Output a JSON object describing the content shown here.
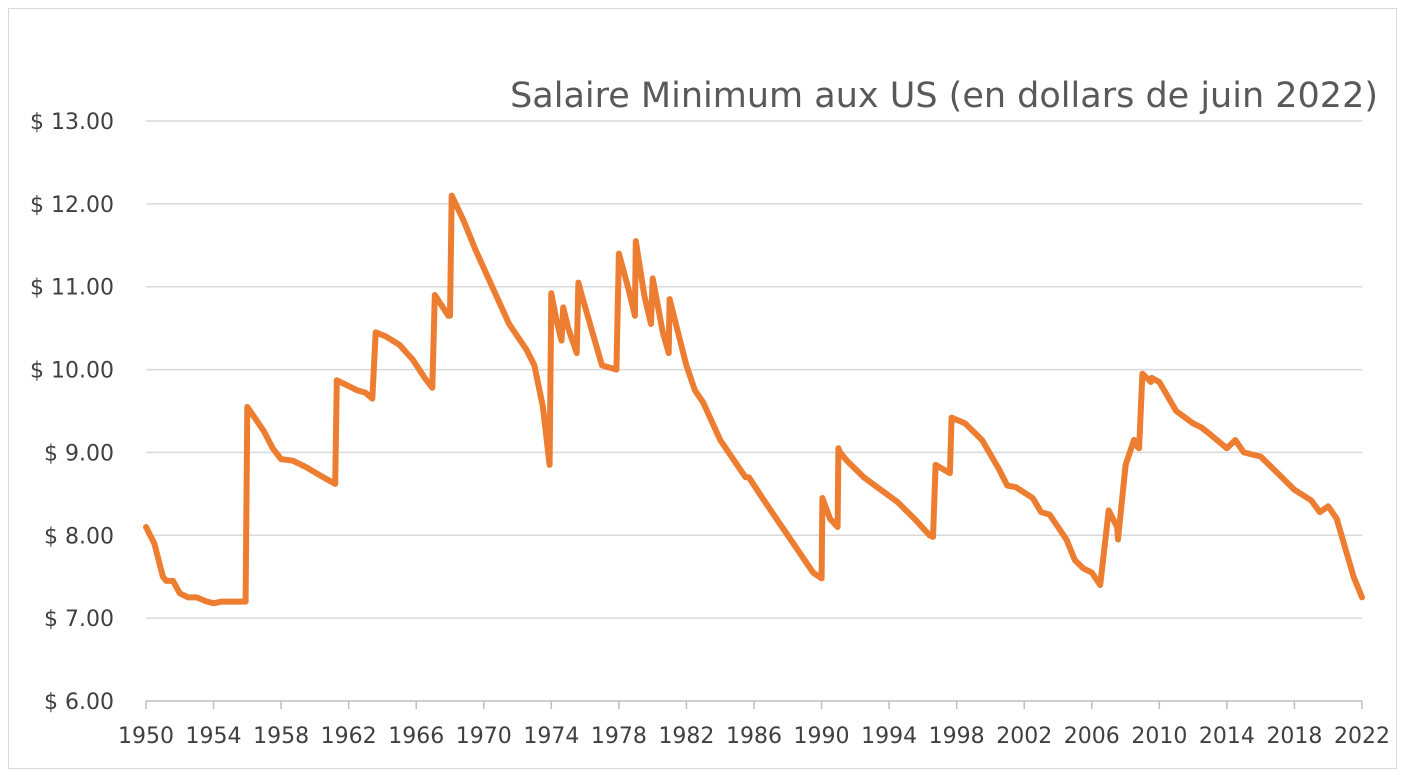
{
  "chart_data": {
    "type": "line",
    "title": "Salaire Minimum aux US (en dollars de juin 2022)",
    "xlabel": "",
    "ylabel": "",
    "xlim": [
      1950,
      2022
    ],
    "ylim": [
      6,
      13
    ],
    "x_ticks": [
      1950,
      1954,
      1958,
      1962,
      1966,
      1970,
      1974,
      1978,
      1982,
      1986,
      1990,
      1994,
      1998,
      2002,
      2006,
      2010,
      2014,
      2018,
      2022
    ],
    "x_tick_labels": [
      "1950",
      "1954",
      "1958",
      "1962",
      "1966",
      "1970",
      "1974",
      "1978",
      "1982",
      "1986",
      "1990",
      "1994",
      "1998",
      "2002",
      "2006",
      "2010",
      "2014",
      "2018",
      "2022"
    ],
    "y_ticks": [
      6,
      7,
      8,
      9,
      10,
      11,
      12,
      13
    ],
    "y_tick_labels": [
      "$ 6.00",
      "$ 7.00",
      "$ 8.00",
      "$ 9.00",
      "$ 10.00",
      "$ 11.00",
      "$ 12.00",
      "$ 13.00"
    ],
    "grid": "horizontal",
    "legend": "none",
    "series": [
      {
        "color": "#ed7d31",
        "x": [
          1950.0,
          1950.5,
          1951.0,
          1951.2,
          1951.6,
          1952.0,
          1952.5,
          1953.0,
          1953.6,
          1954.0,
          1954.5,
          1955.0,
          1955.5,
          1955.9,
          1956.0,
          1956.5,
          1957.0,
          1957.5,
          1958.0,
          1958.7,
          1959.5,
          1960.5,
          1961.2,
          1961.3,
          1962.0,
          1962.5,
          1963.0,
          1963.4,
          1963.6,
          1964.2,
          1965.0,
          1965.8,
          1966.5,
          1966.95,
          1967.1,
          1967.9,
          1968.0,
          1968.1,
          1968.8,
          1969.5,
          1970.5,
          1971.5,
          1972.5,
          1973.0,
          1973.5,
          1973.9,
          1974.0,
          1974.3,
          1974.6,
          1974.7,
          1975.0,
          1975.5,
          1975.6,
          1975.8,
          1976.5,
          1977.0,
          1977.85,
          1978.0,
          1978.6,
          1978.95,
          1979.0,
          1979.5,
          1979.9,
          1980.0,
          1980.6,
          1980.95,
          1981.0,
          1981.5,
          1982.0,
          1982.5,
          1983.0,
          1984.0,
          1985.0,
          1985.5,
          1985.7,
          1986.5,
          1987.5,
          1988.5,
          1989.5,
          1990.0,
          1990.05,
          1990.5,
          1990.95,
          1991.0,
          1991.1,
          1991.5,
          1992.5,
          1993.5,
          1994.5,
          1995.5,
          1996.4,
          1996.6,
          1996.75,
          1997.6,
          1997.7,
          1998.5,
          1999.5,
          2000.5,
          2001.0,
          2001.5,
          2002.5,
          2003.0,
          2003.5,
          2004.0,
          2004.5,
          2005.0,
          2005.5,
          2006.0,
          2006.5,
          2007.0,
          2007.5,
          2007.55,
          2008.0,
          2008.5,
          2008.55,
          2008.8,
          2009.0,
          2009.5,
          2009.55,
          2010.0,
          2011.0,
          2012.0,
          2012.5,
          2013.0,
          2014.0,
          2014.5,
          2015.0,
          2016.0,
          2017.0,
          2018.0,
          2019.0,
          2019.5,
          2020.0,
          2020.5,
          2021.0,
          2021.5,
          2022.0
        ],
        "values": [
          8.1,
          7.9,
          7.5,
          7.45,
          7.45,
          7.3,
          7.25,
          7.25,
          7.2,
          7.18,
          7.2,
          7.2,
          7.2,
          7.2,
          9.55,
          9.4,
          9.25,
          9.05,
          8.92,
          8.9,
          8.82,
          8.7,
          8.62,
          9.87,
          9.8,
          9.75,
          9.72,
          9.65,
          10.45,
          10.4,
          10.3,
          10.12,
          9.9,
          9.78,
          10.9,
          10.65,
          10.65,
          12.1,
          11.8,
          11.45,
          11.0,
          10.55,
          10.25,
          10.05,
          9.55,
          8.85,
          10.92,
          10.6,
          10.35,
          10.75,
          10.5,
          10.2,
          11.05,
          10.9,
          10.4,
          10.05,
          10.0,
          11.4,
          10.95,
          10.65,
          11.55,
          10.9,
          10.55,
          11.1,
          10.45,
          10.2,
          10.85,
          10.45,
          10.05,
          9.75,
          9.6,
          9.15,
          8.85,
          8.7,
          8.7,
          8.45,
          8.15,
          7.85,
          7.55,
          7.48,
          8.45,
          8.2,
          8.1,
          9.05,
          9.0,
          8.9,
          8.7,
          8.55,
          8.4,
          8.2,
          8.0,
          7.98,
          8.85,
          8.75,
          9.42,
          9.35,
          9.15,
          8.8,
          8.6,
          8.58,
          8.45,
          8.28,
          8.25,
          8.1,
          7.95,
          7.7,
          7.6,
          7.55,
          7.4,
          8.3,
          8.1,
          7.95,
          8.85,
          9.15,
          9.1,
          9.05,
          9.95,
          9.85,
          9.9,
          9.85,
          9.5,
          9.35,
          9.3,
          9.22,
          9.05,
          9.15,
          9.0,
          8.95,
          8.75,
          8.55,
          8.42,
          8.28,
          8.35,
          8.2,
          7.85,
          7.5,
          7.25
        ]
      }
    ]
  }
}
